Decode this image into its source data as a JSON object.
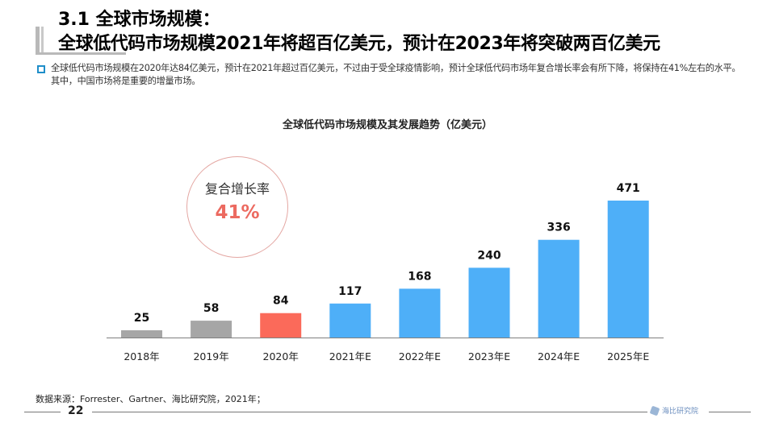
{
  "header": {
    "title_line1": "3.1 全球市场规模：",
    "title_line2": "全球低代码市场规模2021年将超百亿美元，预计在2023年将突破两百亿美元"
  },
  "summary": {
    "text": "全球低代码市场规模在2020年达84亿美元，预计在2021年超过百亿美元，不过由于受全球疫情影响，预计全球低代码市场年复合增长率会有所下降，将保持在41%左右的水平。其中，中国市场将是重要的增量市场。",
    "bullet_color": "#1f8ec9"
  },
  "cagr_badge": {
    "label": "复合增长率",
    "value": "41%",
    "color": "#ec6a60"
  },
  "chart_data": {
    "type": "bar",
    "title": "全球低代码市场规模及其发展趋势（亿美元）",
    "xlabel": "",
    "ylabel": "",
    "ylim": [
      0,
      500
    ],
    "grid": false,
    "categories": [
      "2018年",
      "2019年",
      "2020年",
      "2021年E",
      "2022年E",
      "2023年E",
      "2024年E",
      "2025年E"
    ],
    "values": [
      25,
      58,
      84,
      117,
      168,
      240,
      336,
      471
    ],
    "data_labels": [
      "25",
      "58",
      "84",
      "117",
      "168",
      "240",
      "336",
      "471"
    ],
    "bar_colors": [
      "#a6a6a6",
      "#a6a6a6",
      "#fb6a5a",
      "#4eaff8",
      "#4eaff8",
      "#4eaff8",
      "#4eaff8",
      "#4eaff8"
    ],
    "series_groups": [
      {
        "name": "historical",
        "color": "#a6a6a6"
      },
      {
        "name": "current",
        "color": "#fb6a5a"
      },
      {
        "name": "estimate",
        "color": "#4eaff8"
      }
    ]
  },
  "footer": {
    "source": "数据来源：Forrester、Gartner、海比研究院，2021年；",
    "page_number": "22",
    "logo_text": "海比研究院"
  }
}
